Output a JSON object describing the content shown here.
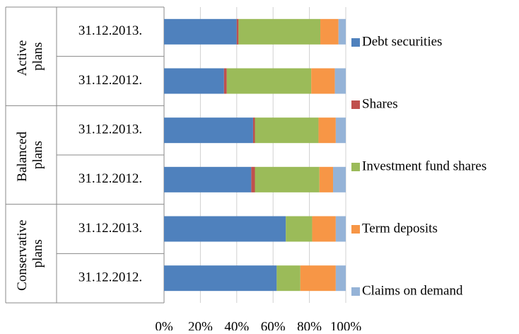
{
  "chart_data": {
    "type": "stacked-bar-horizontal",
    "groups": [
      {
        "name": "Active plans",
        "categories": [
          "31.12.2013.",
          "31.12.2012."
        ]
      },
      {
        "name": "Balanced plans",
        "categories": [
          "31.12.2013.",
          "31.12.2012."
        ]
      },
      {
        "name": "Conservative plans",
        "categories": [
          "31.12.2013.",
          "31.12.2012."
        ]
      }
    ],
    "series": [
      {
        "name": "Debt securities",
        "color": "#4f81bd",
        "values": [
          40,
          33,
          49,
          48,
          67,
          62
        ]
      },
      {
        "name": "Shares",
        "color": "#c0504d",
        "values": [
          1,
          1.5,
          1,
          2,
          0,
          0
        ]
      },
      {
        "name": "Investment fund shares",
        "color": "#9bbb59",
        "values": [
          45,
          46.5,
          35,
          35.5,
          14.5,
          13
        ]
      },
      {
        "name": "Term deposits",
        "color": "#f79646",
        "values": [
          10,
          13,
          9.5,
          7.5,
          13,
          19.5
        ]
      },
      {
        "name": "Claims on demand",
        "color": "#95b3d7",
        "values": [
          4,
          6,
          5.5,
          7,
          5.5,
          5.5
        ]
      }
    ],
    "xlim": [
      0,
      100
    ],
    "xticks": [
      {
        "value": 0,
        "label": "0%"
      },
      {
        "value": 20,
        "label": "20%"
      },
      {
        "value": 40,
        "label": "40%"
      },
      {
        "value": 60,
        "label": "60%"
      },
      {
        "value": 80,
        "label": "80%"
      },
      {
        "value": 100,
        "label": "100%"
      }
    ],
    "grid": true,
    "legend": "right"
  }
}
